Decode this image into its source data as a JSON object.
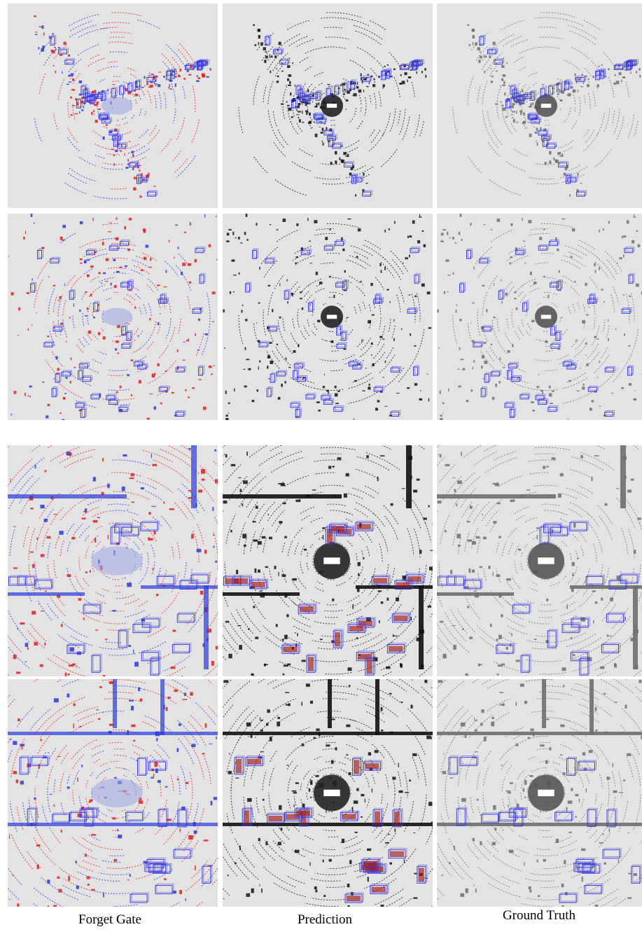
{
  "captions": {
    "forget_gate": "Forget Gate",
    "prediction": "Prediction",
    "ground_truth": "Ground Truth"
  },
  "colors": {
    "panel_background": "#e3e3e3",
    "box_blue": "#3a3ae0",
    "heat_red": "#e02020",
    "heat_blue": "#2a3ad8",
    "points_black": "#111111",
    "points_gray": "#6e6e6e",
    "box_fill_red": "#a01818"
  },
  "rows": [
    {
      "scene": "intersection-diagonal"
    },
    {
      "scene": "intersection-wide"
    },
    {
      "scene": "crossroad-zoom"
    },
    {
      "scene": "street-zoom"
    }
  ],
  "columns": [
    "forget-gate",
    "prediction",
    "ground-truth"
  ]
}
